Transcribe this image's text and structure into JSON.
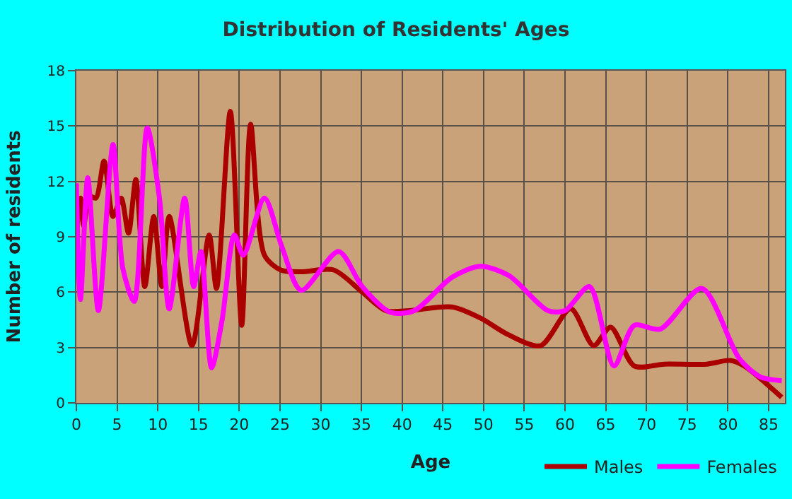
{
  "chart_data": {
    "type": "line",
    "title": "Distribution of Residents' Ages",
    "xlabel": "Age",
    "ylabel": "Number of residents",
    "xlim": [
      0,
      87
    ],
    "xticks": [
      0,
      5,
      10,
      15,
      20,
      25,
      30,
      35,
      40,
      45,
      50,
      55,
      60,
      65,
      70,
      75,
      80,
      85
    ],
    "ylim": [
      0,
      18
    ],
    "yticks": [
      0,
      3,
      6,
      9,
      12,
      15,
      18
    ],
    "grid": true,
    "legend": "bottom right",
    "marker": "none",
    "line_style": "solid",
    "series": [
      {
        "name": "Males",
        "color": "#aa0000",
        "x": [
          0,
          0.5,
          0.9,
          1.6,
          2.4,
          3.4,
          4.5,
          5.5,
          6.4,
          7.3,
          8.4,
          9.5,
          10.5,
          11.4,
          14.2,
          16.3,
          17.2,
          18.9,
          20.3,
          21.4,
          23.1,
          25.1,
          27.6,
          31.6,
          35.1,
          38,
          40.9,
          46.1,
          49.6,
          53,
          57,
          60.7,
          63.5,
          65.6,
          68.5,
          72.2,
          77.4,
          80.3,
          82,
          86.6
        ],
        "values": [
          9.1,
          11.1,
          9.6,
          11.2,
          11.1,
          13.1,
          10.1,
          11.1,
          9.2,
          12.1,
          6.3,
          10.1,
          6.3,
          10.1,
          3.1,
          9.1,
          6.2,
          15.8,
          4.2,
          15.1,
          8.0,
          7.2,
          7.1,
          7.2,
          6.0,
          5.0,
          5.0,
          5.2,
          4.6,
          3.7,
          3.1,
          5.1,
          3.1,
          4.1,
          2.0,
          2.1,
          2.1,
          2.3,
          2.0,
          0.3
        ]
      },
      {
        "name": "Females",
        "color": "#ff00ff",
        "x": [
          0,
          0.5,
          1.4,
          2.7,
          4.5,
          5.7,
          7.1,
          8.7,
          10.2,
          11.4,
          13.3,
          14.4,
          15.3,
          16.6,
          17.9,
          19.4,
          20.5,
          23.1,
          25.2,
          27.6,
          32.2,
          35.1,
          38.6,
          41.5,
          46.1,
          49.6,
          53.1,
          57.9,
          60,
          63,
          66,
          68.5,
          71.7,
          76.8,
          81.4,
          84,
          86.6
        ],
        "values": [
          11.9,
          5.6,
          12.2,
          5.0,
          14.0,
          7.3,
          5.5,
          14.9,
          11.1,
          5.1,
          11.1,
          6.3,
          8.2,
          1.9,
          4.5,
          9.1,
          8.0,
          11.1,
          8.5,
          6.1,
          8.2,
          6.3,
          4.9,
          5.0,
          6.8,
          7.4,
          6.9,
          5.0,
          5.0,
          6.3,
          2.0,
          4.2,
          4.0,
          6.2,
          2.4,
          1.4,
          1.2
        ]
      }
    ]
  }
}
